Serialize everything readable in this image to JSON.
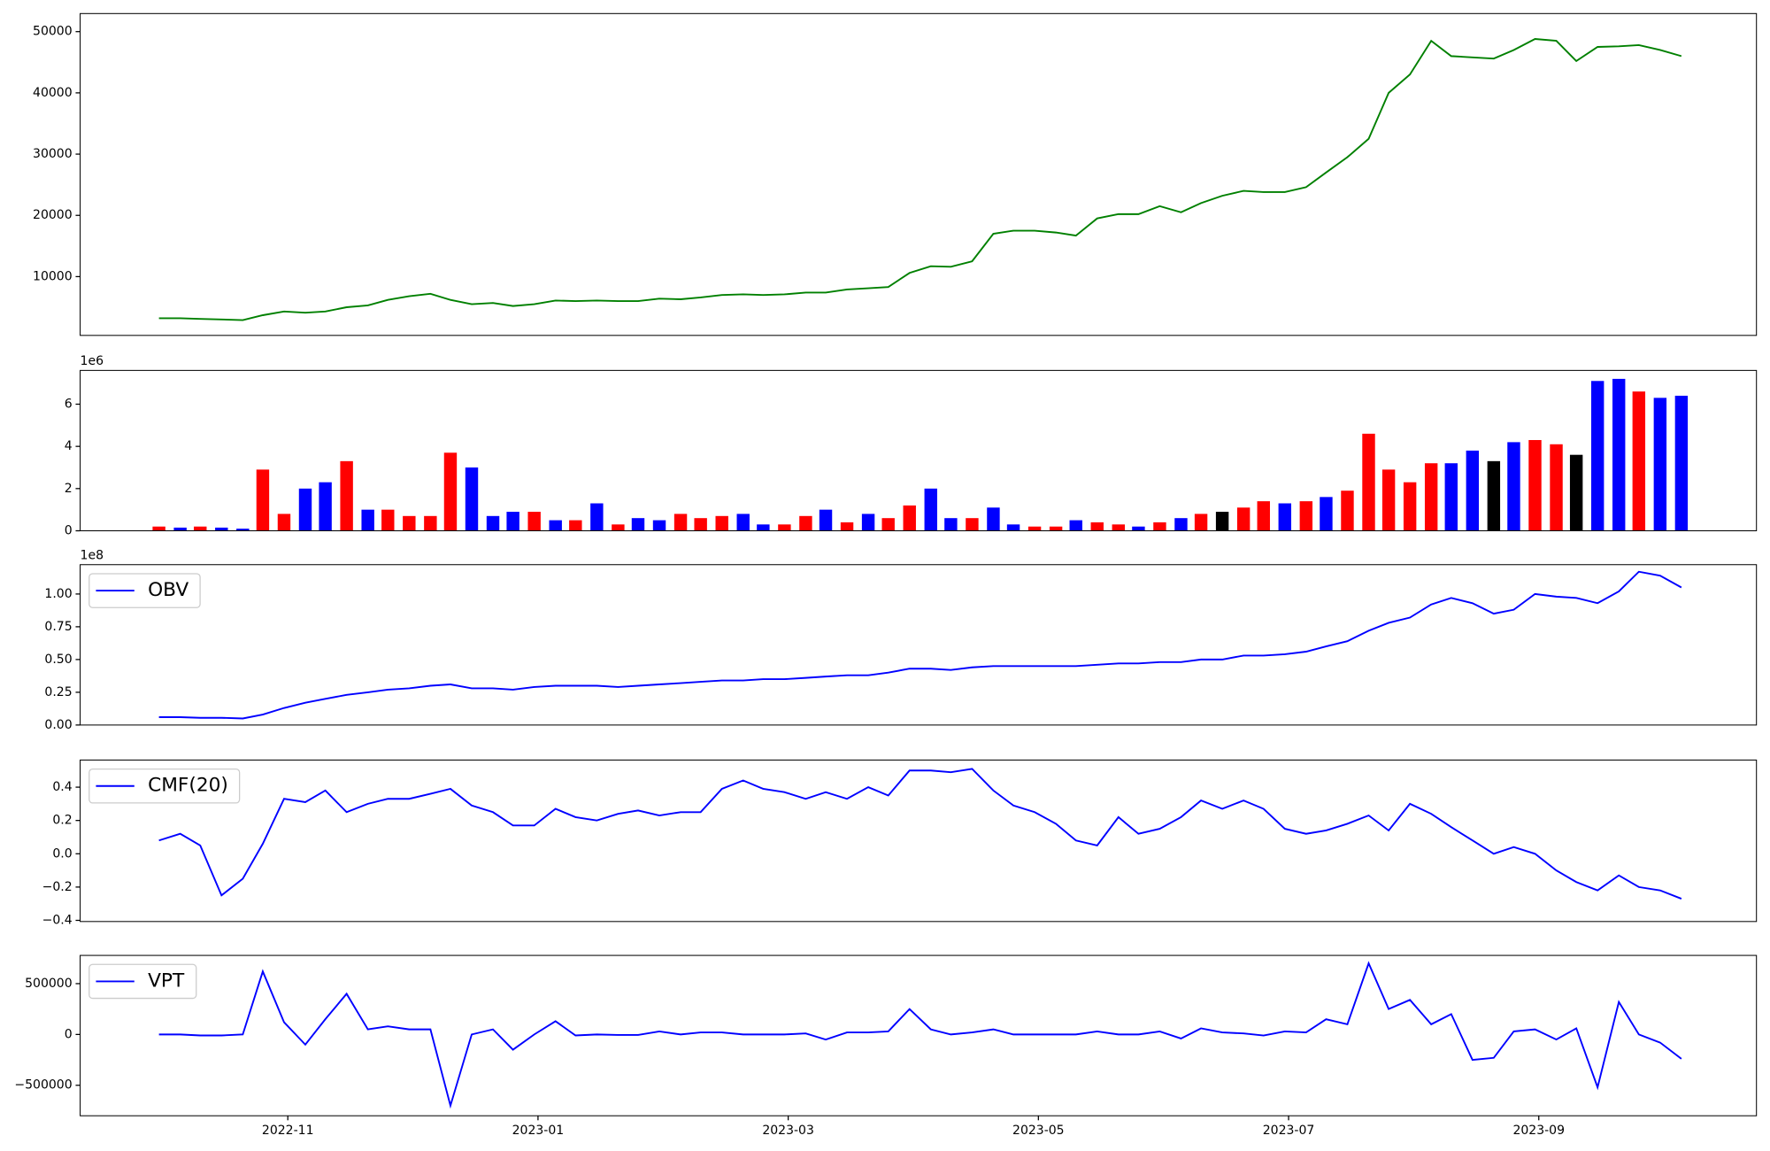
{
  "chart_data": [
    {
      "type": "line",
      "x": [
        8.97,
        9.14,
        9.3,
        9.47,
        9.64,
        9.8,
        9.97,
        10.14,
        10.3,
        10.47,
        10.64,
        10.8,
        10.97,
        11.14,
        11.3,
        11.47,
        11.64,
        11.8,
        11.97,
        12.14,
        12.3,
        12.47,
        12.64,
        12.8,
        12.97,
        13.14,
        13.3,
        13.47,
        13.64,
        13.8,
        13.97,
        14.14,
        14.3,
        14.47,
        14.64,
        14.8,
        14.97,
        15.14,
        15.3,
        15.47,
        15.64,
        15.8,
        15.97,
        16.14,
        16.3,
        16.47,
        16.64,
        16.8,
        16.97,
        17.14,
        17.3,
        17.47,
        17.64,
        17.8,
        17.97,
        18.14,
        18.3,
        18.47,
        18.64,
        18.8,
        18.97,
        19.14,
        19.3,
        19.47,
        19.64,
        19.8,
        19.97,
        20.14,
        20.3,
        20.47,
        20.64,
        20.8,
        20.97,
        21.14
      ],
      "xlim": [
        8.34,
        21.74
      ],
      "series": [
        {
          "color": "green",
          "values": [
            3200,
            3200,
            3100,
            3000,
            2900,
            3700,
            4300,
            4100,
            4300,
            5000,
            5300,
            6200,
            6800,
            7200,
            6200,
            5500,
            5700,
            5200,
            5500,
            6100,
            6000,
            6100,
            6000,
            6000,
            6400,
            6300,
            6600,
            7000,
            7100,
            7000,
            7100,
            7400,
            7400,
            7900,
            8100,
            8300,
            10600,
            11700,
            11600,
            12500,
            17000,
            17500,
            17500,
            17200,
            16700,
            19500,
            20200,
            20200,
            21500,
            20500,
            22000,
            23200,
            24000,
            23800,
            23800,
            24600,
            27000,
            29500,
            32500,
            40000,
            43000,
            48500,
            46000,
            45800,
            45600,
            47000,
            48800,
            48500,
            45200,
            47500,
            47600,
            47800,
            47000,
            46000
          ]
        }
      ],
      "ylim": [
        400,
        52950
      ],
      "yticks": [
        10000,
        20000,
        30000,
        40000,
        50000
      ]
    },
    {
      "type": "bar",
      "x": [
        8.97,
        9.14,
        9.3,
        9.47,
        9.64,
        9.8,
        9.97,
        10.14,
        10.3,
        10.47,
        10.64,
        10.8,
        10.97,
        11.14,
        11.3,
        11.47,
        11.64,
        11.8,
        11.97,
        12.14,
        12.3,
        12.47,
        12.64,
        12.8,
        12.97,
        13.14,
        13.3,
        13.47,
        13.64,
        13.8,
        13.97,
        14.14,
        14.3,
        14.47,
        14.64,
        14.8,
        14.97,
        15.14,
        15.3,
        15.47,
        15.64,
        15.8,
        15.97,
        16.14,
        16.3,
        16.47,
        16.64,
        16.8,
        16.97,
        17.14,
        17.3,
        17.47,
        17.64,
        17.8,
        17.97,
        18.14,
        18.3,
        18.47,
        18.64,
        18.8,
        18.97,
        19.14,
        19.3,
        19.47,
        19.64,
        19.8,
        19.97,
        20.14,
        20.3,
        20.47,
        20.64,
        20.8,
        20.97,
        21.14
      ],
      "xlim": [
        8.34,
        21.74
      ],
      "values": [
        200000,
        150000,
        200000,
        150000,
        100000,
        2900000,
        800000,
        2000000,
        2300000,
        3300000,
        1000000,
        1000000,
        700000,
        700000,
        3700000,
        3000000,
        700000,
        900000,
        900000,
        500000,
        500000,
        1300000,
        300000,
        600000,
        500000,
        800000,
        600000,
        700000,
        800000,
        300000,
        300000,
        700000,
        1000000,
        400000,
        800000,
        600000,
        1200000,
        2000000,
        600000,
        600000,
        1100000,
        300000,
        200000,
        200000,
        500000,
        400000,
        300000,
        200000,
        400000,
        600000,
        800000,
        900000,
        1100000,
        1400000,
        1300000,
        1400000,
        1600000,
        1900000,
        4600000,
        2900000,
        2300000,
        3200000,
        3200000,
        3800000,
        3300000,
        4200000,
        4300000,
        4100000,
        3600000,
        7100000,
        7200000,
        6600000,
        6300000,
        6400000
      ],
      "colors": [
        "red",
        "blue",
        "red",
        "blue",
        "blue",
        "red",
        "red",
        "blue",
        "blue",
        "red",
        "blue",
        "red",
        "red",
        "red",
        "red",
        "blue",
        "blue",
        "blue",
        "red",
        "blue",
        "red",
        "blue",
        "red",
        "blue",
        "blue",
        "red",
        "red",
        "red",
        "blue",
        "blue",
        "red",
        "red",
        "blue",
        "red",
        "blue",
        "red",
        "red",
        "blue",
        "blue",
        "red",
        "blue",
        "blue",
        "red",
        "red",
        "blue",
        "red",
        "red",
        "blue",
        "red",
        "blue",
        "red",
        "black",
        "red",
        "red",
        "blue",
        "red",
        "blue",
        "red",
        "red",
        "red",
        "red",
        "red",
        "blue",
        "blue",
        "black",
        "blue",
        "red",
        "red",
        "black",
        "blue",
        "blue",
        "red",
        "blue",
        "blue"
      ],
      "ylim": [
        0,
        7600000
      ],
      "yticks": [
        0,
        {
          "value": 2000000,
          "label": "2"
        },
        {
          "value": 4000000,
          "label": "4"
        },
        {
          "value": 6000000,
          "label": "6"
        }
      ],
      "offset_label": "1e6"
    },
    {
      "type": "line",
      "x": [
        8.97,
        9.14,
        9.3,
        9.47,
        9.64,
        9.8,
        9.97,
        10.14,
        10.3,
        10.47,
        10.64,
        10.8,
        10.97,
        11.14,
        11.3,
        11.47,
        11.64,
        11.8,
        11.97,
        12.14,
        12.3,
        12.47,
        12.64,
        12.8,
        12.97,
        13.14,
        13.3,
        13.47,
        13.64,
        13.8,
        13.97,
        14.14,
        14.3,
        14.47,
        14.64,
        14.8,
        14.97,
        15.14,
        15.3,
        15.47,
        15.64,
        15.8,
        15.97,
        16.14,
        16.3,
        16.47,
        16.64,
        16.8,
        16.97,
        17.14,
        17.3,
        17.47,
        17.64,
        17.8,
        17.97,
        18.14,
        18.3,
        18.47,
        18.64,
        18.8,
        18.97,
        19.14,
        19.3,
        19.47,
        19.64,
        19.8,
        19.97,
        20.14,
        20.3,
        20.47,
        20.64,
        20.8,
        20.97,
        21.14
      ],
      "xlim": [
        8.34,
        21.74
      ],
      "series": [
        {
          "name": "OBV",
          "color": "blue",
          "values": [
            6000000,
            6000000,
            5500000,
            5500000,
            5000000,
            8000000,
            13000000,
            17000000,
            20000000,
            23000000,
            25000000,
            27000000,
            28000000,
            30000000,
            31000000,
            28000000,
            28000000,
            27000000,
            29000000,
            30000000,
            30000000,
            30000000,
            29000000,
            30000000,
            31000000,
            32000000,
            33000000,
            34000000,
            34000000,
            35000000,
            35000000,
            36000000,
            37000000,
            38000000,
            38000000,
            40000000,
            43000000,
            43000000,
            42000000,
            44000000,
            45000000,
            45000000,
            45000000,
            45000000,
            45000000,
            46000000,
            47000000,
            47000000,
            48000000,
            48000000,
            50000000,
            50000000,
            53000000,
            53000000,
            54000000,
            56000000,
            60000000,
            64000000,
            72000000,
            78000000,
            82000000,
            92000000,
            97000000,
            93000000,
            85000000,
            88000000,
            100000000,
            98000000,
            97000000,
            93000000,
            102000000,
            117000000,
            114000000,
            105000000
          ]
        }
      ],
      "ylim": [
        0,
        122400000
      ],
      "yticks": [
        {
          "value": 0,
          "label": "0.00"
        },
        {
          "value": 25000000,
          "label": "0.25"
        },
        {
          "value": 50000000,
          "label": "0.50"
        },
        {
          "value": 75000000,
          "label": "0.75"
        },
        {
          "value": 100000000,
          "label": "1.00"
        }
      ],
      "offset_label": "1e8",
      "legend": "upper left"
    },
    {
      "type": "line",
      "x": [
        8.97,
        9.14,
        9.3,
        9.47,
        9.64,
        9.8,
        9.97,
        10.14,
        10.3,
        10.47,
        10.64,
        10.8,
        10.97,
        11.14,
        11.3,
        11.47,
        11.64,
        11.8,
        11.97,
        12.14,
        12.3,
        12.47,
        12.64,
        12.8,
        12.97,
        13.14,
        13.3,
        13.47,
        13.64,
        13.8,
        13.97,
        14.14,
        14.3,
        14.47,
        14.64,
        14.8,
        14.97,
        15.14,
        15.3,
        15.47,
        15.64,
        15.8,
        15.97,
        16.14,
        16.3,
        16.47,
        16.64,
        16.8,
        16.97,
        17.14,
        17.3,
        17.47,
        17.64,
        17.8,
        17.97,
        18.14,
        18.3,
        18.47,
        18.64,
        18.8,
        18.97,
        19.14,
        19.3,
        19.47,
        19.64,
        19.8,
        19.97,
        20.14,
        20.3,
        20.47,
        20.64,
        20.8,
        20.97,
        21.14
      ],
      "xlim": [
        8.34,
        21.74
      ],
      "series": [
        {
          "name": "CMF(20)",
          "color": "blue",
          "values": [
            0.08,
            0.12,
            0.05,
            -0.25,
            -0.15,
            0.06,
            0.33,
            0.31,
            0.38,
            0.25,
            0.3,
            0.33,
            0.33,
            0.36,
            0.39,
            0.29,
            0.25,
            0.17,
            0.17,
            0.27,
            0.22,
            0.2,
            0.24,
            0.26,
            0.23,
            0.25,
            0.25,
            0.39,
            0.44,
            0.39,
            0.37,
            0.33,
            0.37,
            0.33,
            0.4,
            0.35,
            0.5,
            0.5,
            0.49,
            0.51,
            0.38,
            0.29,
            0.25,
            0.18,
            0.08,
            0.05,
            0.22,
            0.12,
            0.15,
            0.22,
            0.32,
            0.27,
            0.32,
            0.27,
            0.15,
            0.12,
            0.14,
            0.18,
            0.23,
            0.14,
            0.3,
            0.24,
            0.16,
            0.08,
            0.0,
            0.04,
            0.0,
            -0.1,
            -0.17,
            -0.22,
            -0.13,
            -0.2,
            -0.22,
            -0.27
          ]
        }
      ],
      "ylim": [
        -0.407,
        0.563
      ],
      "yticks": [
        {
          "value": -0.4,
          "label": "−0.4"
        },
        {
          "value": -0.2,
          "label": "−0.2"
        },
        {
          "value": 0,
          "label": "0.0"
        },
        0.2,
        0.4
      ],
      "legend": "upper left"
    },
    {
      "type": "line",
      "x": [
        8.97,
        9.14,
        9.3,
        9.47,
        9.64,
        9.8,
        9.97,
        10.14,
        10.3,
        10.47,
        10.64,
        10.8,
        10.97,
        11.14,
        11.3,
        11.47,
        11.64,
        11.8,
        11.97,
        12.14,
        12.3,
        12.47,
        12.64,
        12.8,
        12.97,
        13.14,
        13.3,
        13.47,
        13.64,
        13.8,
        13.97,
        14.14,
        14.3,
        14.47,
        14.64,
        14.8,
        14.97,
        15.14,
        15.3,
        15.47,
        15.64,
        15.8,
        15.97,
        16.14,
        16.3,
        16.47,
        16.64,
        16.8,
        16.97,
        17.14,
        17.3,
        17.47,
        17.64,
        17.8,
        17.97,
        18.14,
        18.3,
        18.47,
        18.64,
        18.8,
        18.97,
        19.14,
        19.3,
        19.47,
        19.64,
        19.8,
        19.97,
        20.14,
        20.3,
        20.47,
        20.64,
        20.8,
        20.97,
        21.14
      ],
      "xlim": [
        8.34,
        21.74
      ],
      "xticks": [
        {
          "value": 10,
          "label": "2022-11"
        },
        {
          "value": 12,
          "label": "2023-01"
        },
        {
          "value": 14,
          "label": "2023-03"
        },
        {
          "value": 16,
          "label": "2023-05"
        },
        {
          "value": 18,
          "label": "2023-07"
        },
        {
          "value": 20,
          "label": "2023-09"
        }
      ],
      "series": [
        {
          "name": "VPT",
          "color": "blue",
          "values": [
            0,
            0,
            -10000,
            -10000,
            0,
            620000,
            120000,
            -100000,
            150000,
            400000,
            50000,
            80000,
            50000,
            50000,
            -700000,
            0,
            50000,
            -150000,
            0,
            130000,
            -10000,
            0,
            -5000,
            -5000,
            30000,
            0,
            20000,
            20000,
            0,
            0,
            0,
            10000,
            -50000,
            20000,
            20000,
            30000,
            250000,
            50000,
            0,
            20000,
            50000,
            0,
            0,
            0,
            0,
            30000,
            0,
            0,
            30000,
            -40000,
            60000,
            20000,
            10000,
            -10000,
            30000,
            20000,
            150000,
            100000,
            700000,
            250000,
            340000,
            100000,
            200000,
            -250000,
            -230000,
            30000,
            50000,
            -50000,
            60000,
            -520000,
            320000,
            0,
            -80000,
            -240000
          ]
        }
      ],
      "ylim": [
        -800000,
        777778
      ],
      "yticks": [
        {
          "value": -500000,
          "label": "−500000"
        },
        0,
        500000
      ],
      "legend": "upper left"
    }
  ]
}
